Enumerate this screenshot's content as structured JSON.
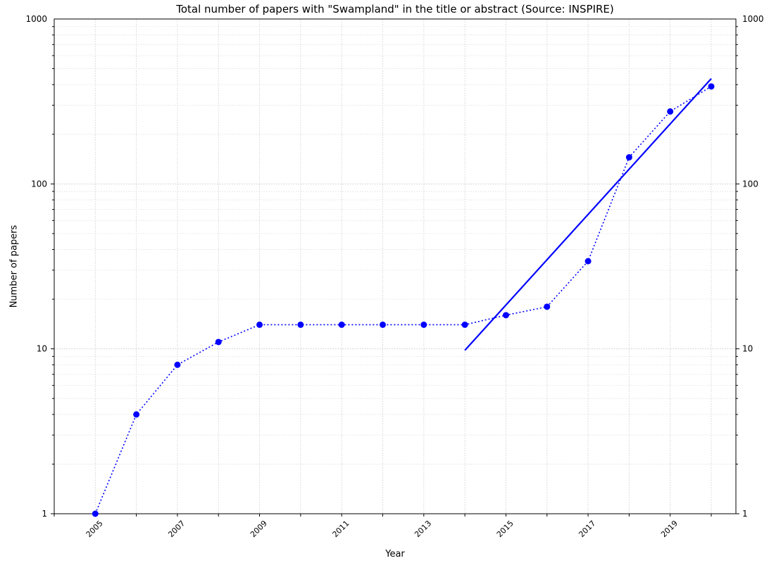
{
  "chart_data": {
    "type": "line",
    "title": "Total number of papers with \"Swampland\" in the title or abstract (Source: INSPIRE)",
    "xlabel": "Year",
    "ylabel": "Number of papers",
    "y_scale": "log",
    "ylim": [
      1,
      1000
    ],
    "xlim": [
      2004.0,
      2020.6
    ],
    "grid": true,
    "y_ticks": [
      {
        "value": 1,
        "label": "1"
      },
      {
        "value": 10,
        "label": "10"
      },
      {
        "value": 100,
        "label": "100"
      },
      {
        "value": 1000,
        "label": "1000"
      }
    ],
    "x_ticks": [
      {
        "value": 2005,
        "label": "2005"
      },
      {
        "value": 2007,
        "label": "2007"
      },
      {
        "value": 2009,
        "label": "2009"
      },
      {
        "value": 2011,
        "label": "2011"
      },
      {
        "value": 2013,
        "label": "2013"
      },
      {
        "value": 2015,
        "label": "2015"
      },
      {
        "value": 2017,
        "label": "2017"
      },
      {
        "value": 2019,
        "label": "2019"
      }
    ],
    "series": [
      {
        "style": "dotted-with-markers",
        "color": "#0000ff",
        "x": [
          2005,
          2006,
          2007,
          2008,
          2009,
          2010,
          2011,
          2012,
          2013,
          2014,
          2015,
          2016,
          2017,
          2018,
          2019,
          2020
        ],
        "y": [
          1,
          4,
          8,
          11,
          14,
          14,
          14,
          14,
          14,
          14,
          16,
          18,
          34,
          145,
          275,
          390
        ]
      },
      {
        "style": "solid-fit-line",
        "color": "#0000ff",
        "x": [
          2014,
          2020
        ],
        "y": [
          9.8,
          435
        ]
      }
    ]
  }
}
